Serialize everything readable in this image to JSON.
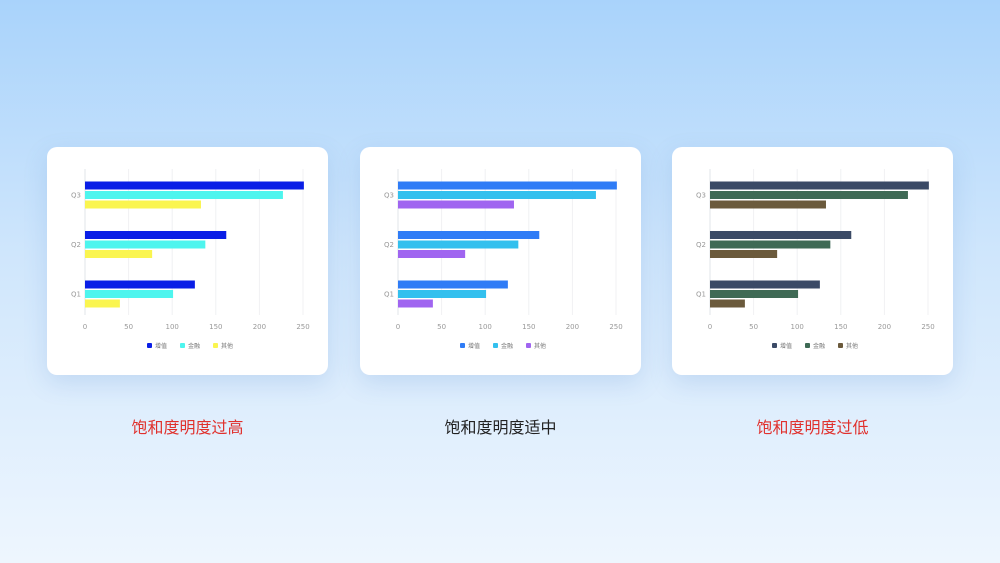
{
  "captions": [
    "饱和度明度过高",
    "饱和度明度适中",
    "饱和度明度过低"
  ],
  "caption_colors": [
    "#e0302c",
    "#222222",
    "#e0302c"
  ],
  "chart_data": [
    {
      "type": "bar",
      "orientation": "horizontal",
      "categories": [
        "Q1",
        "Q2",
        "Q3"
      ],
      "series": [
        {
          "name": "增值",
          "values": [
            126,
            162,
            251
          ],
          "color": "#0a1ee6"
        },
        {
          "name": "金融",
          "values": [
            101,
            138,
            227
          ],
          "color": "#4ef5ee"
        },
        {
          "name": "其他",
          "values": [
            40,
            77,
            133
          ],
          "color": "#faf550"
        }
      ],
      "xticks": [
        0,
        50,
        100,
        150,
        200,
        250
      ],
      "xlim": [
        0,
        250
      ],
      "grid": true,
      "legend": "bottom"
    },
    {
      "type": "bar",
      "orientation": "horizontal",
      "categories": [
        "Q1",
        "Q2",
        "Q3"
      ],
      "series": [
        {
          "name": "增值",
          "values": [
            126,
            162,
            251
          ],
          "color": "#2f7cf6"
        },
        {
          "name": "金融",
          "values": [
            101,
            138,
            227
          ],
          "color": "#33c0ee"
        },
        {
          "name": "其他",
          "values": [
            40,
            77,
            133
          ],
          "color": "#a065f0"
        }
      ],
      "xticks": [
        0,
        50,
        100,
        150,
        200,
        250
      ],
      "xlim": [
        0,
        250
      ],
      "grid": true,
      "legend": "bottom"
    },
    {
      "type": "bar",
      "orientation": "horizontal",
      "categories": [
        "Q1",
        "Q2",
        "Q3"
      ],
      "series": [
        {
          "name": "增值",
          "values": [
            126,
            162,
            251
          ],
          "color": "#3b4a66"
        },
        {
          "name": "金融",
          "values": [
            101,
            138,
            227
          ],
          "color": "#3f6a55"
        },
        {
          "name": "其他",
          "values": [
            40,
            77,
            133
          ],
          "color": "#6b5a3c"
        }
      ],
      "xticks": [
        0,
        50,
        100,
        150,
        200,
        250
      ],
      "xlim": [
        0,
        250
      ],
      "grid": true,
      "legend": "bottom"
    }
  ]
}
